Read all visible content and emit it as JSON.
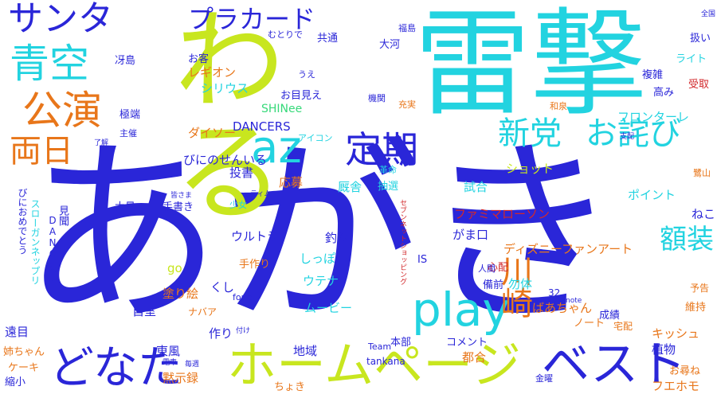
{
  "word_cloud": {
    "colors": {
      "blue": "#2a26d8",
      "cyan": "#22d3e0",
      "lime": "#c8e61f",
      "orange": "#e8761a",
      "green": "#37d97a",
      "red": "#d2282b"
    },
    "words": [
      {
        "text": "あがき",
        "color": "blue"
      },
      {
        "text": "雷撃",
        "color": "cyan"
      },
      {
        "text": "わる",
        "color": "lime"
      },
      {
        "text": "ホームページ",
        "color": "lime"
      },
      {
        "text": "どなた",
        "color": "blue"
      },
      {
        "text": "ベスト",
        "color": "blue"
      },
      {
        "text": "play",
        "color": "cyan"
      },
      {
        "text": "サンタ",
        "color": "blue"
      },
      {
        "text": "青空",
        "color": "cyan"
      },
      {
        "text": "公演",
        "color": "orange"
      },
      {
        "text": "両日",
        "color": "orange"
      },
      {
        "text": "az",
        "color": "cyan"
      },
      {
        "text": "定期",
        "color": "blue"
      },
      {
        "text": "新党",
        "color": "cyan"
      },
      {
        "text": "お詫び",
        "color": "cyan"
      },
      {
        "text": "川崎",
        "color": "orange"
      },
      {
        "text": "額装",
        "color": "cyan"
      },
      {
        "text": "プラカード",
        "color": "blue"
      },
      {
        "text": "ファミマローソン",
        "color": "red"
      },
      {
        "text": "ディズニーファンアート",
        "color": "orange"
      },
      {
        "text": "ウルトラ",
        "color": "blue"
      },
      {
        "text": "ムービー",
        "color": "cyan"
      },
      {
        "text": "ばあちゃん",
        "color": "orange"
      },
      {
        "text": "ダイソー",
        "color": "orange"
      },
      {
        "text": "びにのせんいる",
        "color": "blue"
      },
      {
        "text": "シリウス",
        "color": "cyan"
      },
      {
        "text": "レギオン",
        "color": "orange"
      },
      {
        "text": "DANCERS",
        "color": "blue"
      },
      {
        "text": "SHINee",
        "color": "green"
      },
      {
        "text": "フロンターレ",
        "color": "cyan"
      },
      {
        "text": "ショット",
        "color": "lime"
      },
      {
        "text": "ポイント",
        "color": "cyan"
      },
      {
        "text": "試合",
        "color": "cyan"
      },
      {
        "text": "厩舎",
        "color": "cyan"
      },
      {
        "text": "抽選",
        "color": "cyan"
      },
      {
        "text": "応募",
        "color": "orange"
      },
      {
        "text": "投書",
        "color": "blue"
      },
      {
        "text": "手書き",
        "color": "blue"
      },
      {
        "text": "釣り",
        "color": "blue"
      },
      {
        "text": "しっぽ",
        "color": "cyan"
      },
      {
        "text": "がま口",
        "color": "blue"
      },
      {
        "text": "手作り",
        "color": "orange"
      },
      {
        "text": "ウテナ",
        "color": "cyan"
      },
      {
        "text": "くし",
        "color": "blue"
      },
      {
        "text": "塗り絵",
        "color": "orange"
      },
      {
        "text": "自室",
        "color": "blue"
      },
      {
        "text": "作り",
        "color": "blue"
      },
      {
        "text": "東風",
        "color": "blue"
      },
      {
        "text": "地域",
        "color": "blue"
      },
      {
        "text": "本部",
        "color": "blue"
      },
      {
        "text": "コメント",
        "color": "blue"
      },
      {
        "text": "tankana",
        "color": "blue"
      },
      {
        "text": "Team",
        "color": "blue"
      },
      {
        "text": "都合",
        "color": "orange"
      },
      {
        "text": "ちょき",
        "color": "orange"
      },
      {
        "text": "黙示録",
        "color": "orange"
      },
      {
        "text": "ケーキ",
        "color": "orange"
      },
      {
        "text": "姉ちゃん",
        "color": "orange"
      },
      {
        "text": "遠目",
        "color": "blue"
      },
      {
        "text": "縮小",
        "color": "blue"
      },
      {
        "text": "植物",
        "color": "blue"
      },
      {
        "text": "キッシュ",
        "color": "orange"
      },
      {
        "text": "フエホモ",
        "color": "orange"
      },
      {
        "text": "お尋ね",
        "color": "orange"
      },
      {
        "text": "ねこ",
        "color": "blue"
      },
      {
        "text": "ノート",
        "color": "orange"
      },
      {
        "text": "成績",
        "color": "blue"
      },
      {
        "text": "宅配",
        "color": "orange"
      },
      {
        "text": "予告",
        "color": "orange"
      },
      {
        "text": "維持",
        "color": "orange"
      },
      {
        "text": "心配",
        "color": "red"
      },
      {
        "text": "人間",
        "color": "blue"
      },
      {
        "text": "勿体",
        "color": "cyan"
      },
      {
        "text": "備前",
        "color": "blue"
      },
      {
        "text": "ナバア",
        "color": "orange"
      },
      {
        "text": "go",
        "color": "lime"
      },
      {
        "text": "fouet",
        "color": "blue"
      },
      {
        "text": "32",
        "color": "blue"
      },
      {
        "text": "IS",
        "color": "blue"
      },
      {
        "text": "大量",
        "color": "blue"
      },
      {
        "text": "少女",
        "color": "cyan"
      },
      {
        "text": "お客",
        "color": "blue"
      },
      {
        "text": "お目見え",
        "color": "blue"
      },
      {
        "text": "機関",
        "color": "blue"
      },
      {
        "text": "充実",
        "color": "orange"
      },
      {
        "text": "複雑",
        "color": "blue"
      },
      {
        "text": "高み",
        "color": "blue"
      },
      {
        "text": "受取",
        "color": "red"
      },
      {
        "text": "ライト",
        "color": "cyan"
      },
      {
        "text": "扱い",
        "color": "blue"
      },
      {
        "text": "大河",
        "color": "blue"
      },
      {
        "text": "共通",
        "color": "blue"
      },
      {
        "text": "うえ",
        "color": "blue"
      },
      {
        "text": "むとりで",
        "color": "blue"
      },
      {
        "text": "福島",
        "color": "blue"
      },
      {
        "text": "冴島",
        "color": "blue"
      },
      {
        "text": "極端",
        "color": "blue"
      },
      {
        "text": "主催",
        "color": "blue"
      },
      {
        "text": "アイコン",
        "color": "cyan"
      },
      {
        "text": "和泉",
        "color": "orange"
      },
      {
        "text": "革命",
        "color": "cyan"
      },
      {
        "text": "鷺山",
        "color": "orange"
      },
      {
        "text": "金曜",
        "color": "blue"
      },
      {
        "text": "思い出",
        "color": "blue"
      },
      {
        "text": "見聞",
        "color": "blue"
      },
      {
        "text": "DANCE",
        "color": "blue"
      },
      {
        "text": "びにおめでとう",
        "color": "blue"
      },
      {
        "text": "スローガンネップリ",
        "color": "cyan"
      },
      {
        "text": "セブンネットショッピング",
        "color": "red"
      },
      {
        "text": "全国",
        "color": "blue"
      },
      {
        "text": "了解",
        "color": "blue"
      },
      {
        "text": "皆さま",
        "color": "blue"
      },
      {
        "text": "ティム",
        "color": "blue"
      },
      {
        "text": "支配",
        "color": "blue"
      },
      {
        "text": "note",
        "color": "blue"
      },
      {
        "text": "付け",
        "color": "blue"
      },
      {
        "text": "電車",
        "color": "blue"
      },
      {
        "text": "毎週",
        "color": "blue"
      }
    ]
  }
}
